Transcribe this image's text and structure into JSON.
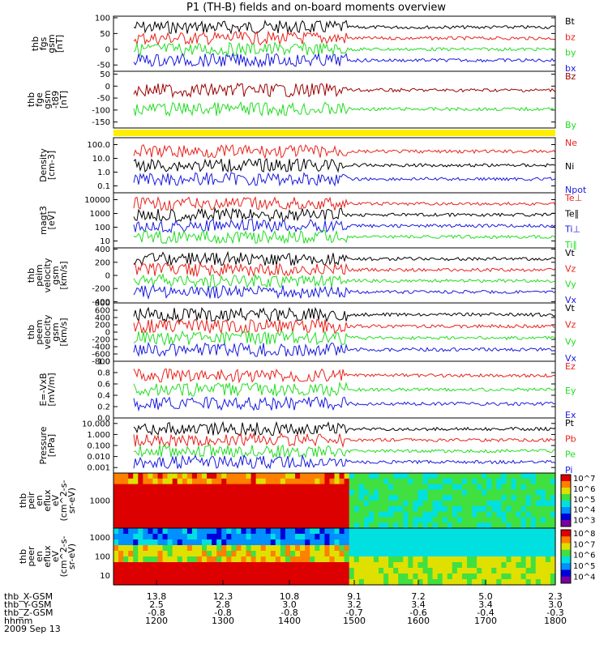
{
  "title": "P1 (TH-B) fields and on-board moments overview",
  "colors": {
    "black": "#000000",
    "red": "#e8221c",
    "green": "#22dd22",
    "blue": "#1a1ae0",
    "darkred": "#9b0000",
    "yellow": "#ffee00"
  },
  "chart_data": [
    {
      "type": "line",
      "ylabel": [
        "thb",
        "fgs",
        "gsm",
        "[nT]"
      ],
      "yticks": [
        100,
        50,
        0,
        -50
      ],
      "ylim": [
        -70,
        105
      ],
      "legend": [
        {
          "name": "Bt",
          "color": "black"
        },
        {
          "name": "bz",
          "color": "red"
        },
        {
          "name": "by",
          "color": "green"
        },
        {
          "name": "bx",
          "color": "blue"
        }
      ]
    },
    {
      "type": "line",
      "ylabel": [
        "thb",
        "fge",
        "gsm",
        "-t89",
        "[nT]"
      ],
      "yticks": [
        50,
        0,
        -50,
        -100,
        -150
      ],
      "ylim": [
        -175,
        62
      ],
      "legend": [
        {
          "name": "Bz",
          "color": "darkred"
        },
        {
          "name": "By",
          "color": "green"
        }
      ]
    },
    {
      "type": "line",
      "ylabel": [
        "Density",
        "[cm-3]"
      ],
      "yticks": [
        "100.0",
        "10.0",
        "1.0",
        "0.1"
      ],
      "log": true,
      "legend": [
        {
          "name": "Ne",
          "color": "red"
        },
        {
          "name": "Ni",
          "color": "black"
        },
        {
          "name": "Npot",
          "color": "blue"
        }
      ]
    },
    {
      "type": "line",
      "ylabel": [
        "magt3",
        "[eV]"
      ],
      "yticks": [
        10000,
        1000,
        100,
        10
      ],
      "log": true,
      "legend": [
        {
          "name": "Te⊥",
          "color": "red"
        },
        {
          "name": "Te∥",
          "color": "black"
        },
        {
          "name": "Ti⊥",
          "color": "blue"
        },
        {
          "name": "Ti∥",
          "color": "green"
        }
      ]
    },
    {
      "type": "line",
      "ylabel": [
        "thb",
        "peim",
        "velocity",
        "gsm",
        "[km/s]"
      ],
      "yticks": [
        400,
        200,
        0,
        -200,
        -400
      ],
      "ylim": [
        -420,
        420
      ],
      "legend": [
        {
          "name": "Vt",
          "color": "black"
        },
        {
          "name": "Vz",
          "color": "red"
        },
        {
          "name": "Vy",
          "color": "green"
        },
        {
          "name": "Vx",
          "color": "blue"
        }
      ]
    },
    {
      "type": "line",
      "ylabel": [
        "thb",
        "peem",
        "velocity",
        "gsm",
        "[km/s]"
      ],
      "yticks": [
        800,
        600,
        400,
        200,
        0,
        -200,
        -400,
        -600,
        -800
      ],
      "ylim": [
        -800,
        800
      ],
      "legend": [
        {
          "name": "Vt",
          "color": "black"
        },
        {
          "name": "Vz",
          "color": "red"
        },
        {
          "name": "Vy",
          "color": "green"
        },
        {
          "name": "Vx",
          "color": "blue"
        }
      ]
    },
    {
      "type": "line",
      "ylabel": [
        "E=-VxB",
        "[mV/m]"
      ],
      "yticks": [
        "1.0",
        "0.8",
        "0.6",
        "0.4",
        "0.2",
        "0.0"
      ],
      "ylim": [
        0,
        1
      ],
      "legend": [
        {
          "name": "Ez",
          "color": "red"
        },
        {
          "name": "Ey",
          "color": "green"
        },
        {
          "name": "Ex",
          "color": "blue"
        }
      ]
    },
    {
      "type": "line",
      "ylabel": [
        "Pressure",
        "[nPa]"
      ],
      "yticks": [
        "10.000",
        "1.000",
        "0.100",
        "0.010",
        "0.001"
      ],
      "log": true,
      "legend": [
        {
          "name": "Pt",
          "color": "black"
        },
        {
          "name": "Pb",
          "color": "red"
        },
        {
          "name": "Pe",
          "color": "green"
        },
        {
          "name": "Pi",
          "color": "blue"
        }
      ]
    },
    {
      "type": "heatmap",
      "ylabel": [
        "thb",
        "peir",
        "en",
        "eflux",
        "eV",
        "(cm^2-s-",
        "sr-eV)"
      ],
      "yticks": [
        1000
      ],
      "log": true,
      "colorbar": [
        "10^7",
        "10^6",
        "10^5",
        "10^4",
        "10^3"
      ]
    },
    {
      "type": "heatmap",
      "ylabel": [
        "thb",
        "peer",
        "en",
        "eflux",
        "eV",
        "(cm^2-s-",
        "sr-eV)"
      ],
      "yticks": [
        1000,
        100,
        10
      ],
      "log": true,
      "colorbar": [
        "10^8",
        "10^7",
        "10^6",
        "10^5",
        "10^4"
      ]
    }
  ],
  "xaxis": {
    "rows": [
      {
        "label": "thb_X-GSM",
        "values": [
          "13.8",
          "12.3",
          "10.8",
          "9.1",
          "7.2",
          "5.0",
          "2.3"
        ]
      },
      {
        "label": "thb_Y-GSM",
        "values": [
          "2.5",
          "2.8",
          "3.0",
          "3.2",
          "3.4",
          "3.4",
          "3.0"
        ]
      },
      {
        "label": "thb_Z-GSM",
        "values": [
          "-0.8",
          "-0.8",
          "-0.8",
          "-0.7",
          "-0.6",
          "-0.4",
          "-0.3"
        ]
      },
      {
        "label": "hhmm",
        "values": [
          "1200",
          "1300",
          "1400",
          "1500",
          "1600",
          "1700",
          "1800"
        ]
      }
    ],
    "date": "2009 Sep 13"
  }
}
